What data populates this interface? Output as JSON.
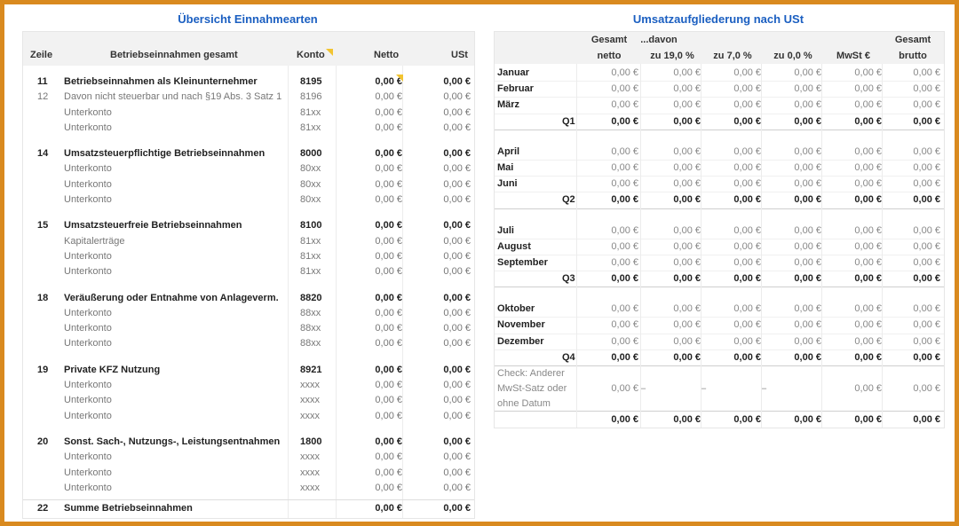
{
  "left": {
    "title": "Übersicht Einnahmearten",
    "headers": {
      "zeile": "Zeile",
      "label": "Betriebseinnahmen gesamt",
      "konto": "Konto",
      "netto": "Netto",
      "ust": "USt"
    },
    "sections": [
      {
        "rows": [
          {
            "zeile": "11",
            "label": "Betriebseinnahmen als Kleinunternehmer",
            "konto": "8195",
            "netto": "0,00 €",
            "ust": "0,00 €",
            "bold": true
          },
          {
            "zeile": "12",
            "label": "Davon nicht steuerbar und nach §19 Abs. 3 Satz 1",
            "konto": "8196",
            "netto": "0,00 €",
            "ust": "0,00 €",
            "bold": false
          },
          {
            "zeile": "",
            "label": "Unterkonto",
            "konto": "81xx",
            "netto": "0,00 €",
            "ust": "0,00 €",
            "bold": false
          },
          {
            "zeile": "",
            "label": "Unterkonto",
            "konto": "81xx",
            "netto": "0,00 €",
            "ust": "0,00 €",
            "bold": false
          }
        ]
      },
      {
        "rows": [
          {
            "zeile": "14",
            "label": "Umsatzsteuerpflichtige Betriebseinnahmen",
            "konto": "8000",
            "netto": "0,00 €",
            "ust": "0,00 €",
            "bold": true
          },
          {
            "zeile": "",
            "label": "Unterkonto",
            "konto": "80xx",
            "netto": "0,00 €",
            "ust": "0,00 €",
            "bold": false
          },
          {
            "zeile": "",
            "label": "Unterkonto",
            "konto": "80xx",
            "netto": "0,00 €",
            "ust": "0,00 €",
            "bold": false
          },
          {
            "zeile": "",
            "label": "Unterkonto",
            "konto": "80xx",
            "netto": "0,00 €",
            "ust": "0,00 €",
            "bold": false
          }
        ]
      },
      {
        "rows": [
          {
            "zeile": "15",
            "label": "Umsatzsteuerfreie Betriebseinnahmen",
            "konto": "8100",
            "netto": "0,00 €",
            "ust": "0,00 €",
            "bold": true
          },
          {
            "zeile": "",
            "label": "Kapitalerträge",
            "konto": "81xx",
            "netto": "0,00 €",
            "ust": "0,00 €",
            "bold": false
          },
          {
            "zeile": "",
            "label": "Unterkonto",
            "konto": "81xx",
            "netto": "0,00 €",
            "ust": "0,00 €",
            "bold": false
          },
          {
            "zeile": "",
            "label": "Unterkonto",
            "konto": "81xx",
            "netto": "0,00 €",
            "ust": "0,00 €",
            "bold": false
          }
        ]
      },
      {
        "rows": [
          {
            "zeile": "18",
            "label": "Veräußerung oder Entnahme von Anlageverm.",
            "konto": "8820",
            "netto": "0,00 €",
            "ust": "0,00 €",
            "bold": true
          },
          {
            "zeile": "",
            "label": "Unterkonto",
            "konto": "88xx",
            "netto": "0,00 €",
            "ust": "0,00 €",
            "bold": false
          },
          {
            "zeile": "",
            "label": "Unterkonto",
            "konto": "88xx",
            "netto": "0,00 €",
            "ust": "0,00 €",
            "bold": false
          },
          {
            "zeile": "",
            "label": "Unterkonto",
            "konto": "88xx",
            "netto": "0,00 €",
            "ust": "0,00 €",
            "bold": false
          }
        ]
      },
      {
        "rows": [
          {
            "zeile": "19",
            "label": "Private KFZ Nutzung",
            "konto": "8921",
            "netto": "0,00 €",
            "ust": "0,00 €",
            "bold": true
          },
          {
            "zeile": "",
            "label": "Unterkonto",
            "konto": "xxxx",
            "netto": "0,00 €",
            "ust": "0,00 €",
            "bold": false
          },
          {
            "zeile": "",
            "label": "Unterkonto",
            "konto": "xxxx",
            "netto": "0,00 €",
            "ust": "0,00 €",
            "bold": false
          },
          {
            "zeile": "",
            "label": "Unterkonto",
            "konto": "xxxx",
            "netto": "0,00 €",
            "ust": "0,00 €",
            "bold": false
          }
        ]
      },
      {
        "rows": [
          {
            "zeile": "20",
            "label": "Sonst. Sach-, Nutzungs-, Leistungsentnahmen",
            "konto": "1800",
            "netto": "0,00 €",
            "ust": "0,00 €",
            "bold": true
          },
          {
            "zeile": "",
            "label": "Unterkonto",
            "konto": "xxxx",
            "netto": "0,00 €",
            "ust": "0,00 €",
            "bold": false
          },
          {
            "zeile": "",
            "label": "Unterkonto",
            "konto": "xxxx",
            "netto": "0,00 €",
            "ust": "0,00 €",
            "bold": false
          },
          {
            "zeile": "",
            "label": "Unterkonto",
            "konto": "xxxx",
            "netto": "0,00 €",
            "ust": "0,00 €",
            "bold": false
          }
        ]
      }
    ],
    "total": {
      "zeile": "22",
      "label": "Summe Betriebseinnahmen",
      "netto": "0,00 €",
      "ust": "0,00 €"
    }
  },
  "right": {
    "title": "Umsatzaufgliederung nach USt",
    "headers": {
      "gesamt_netto_1": "Gesamt",
      "gesamt_netto_2": "netto",
      "davon": "...davon",
      "z19": "zu 19,0 %",
      "z7": "zu 7,0 %",
      "z0": "zu 0,0 %",
      "mwst": "MwSt €",
      "brutto_1": "Gesamt",
      "brutto_2": "brutto"
    },
    "quarters": [
      {
        "months": [
          "Januar",
          "Februar",
          "März"
        ],
        "label": "Q1"
      },
      {
        "months": [
          "April",
          "Mai",
          "Juni"
        ],
        "label": "Q2"
      },
      {
        "months": [
          "Juli",
          "August",
          "September"
        ],
        "label": "Q3"
      },
      {
        "months": [
          "Oktober",
          "November",
          "Dezember"
        ],
        "label": "Q4"
      }
    ],
    "cell_value": "0,00 €",
    "check": {
      "line1": "Check: Anderer",
      "line2": "MwSt-Satz oder",
      "line3": "ohne Datum",
      "dash": "–",
      "value": "0,00 €"
    },
    "total_value": "0,00 €"
  },
  "colors": {
    "accent": "#1b5fc1",
    "frame": "#d98a1f",
    "comment_marker": "#f2c431"
  }
}
